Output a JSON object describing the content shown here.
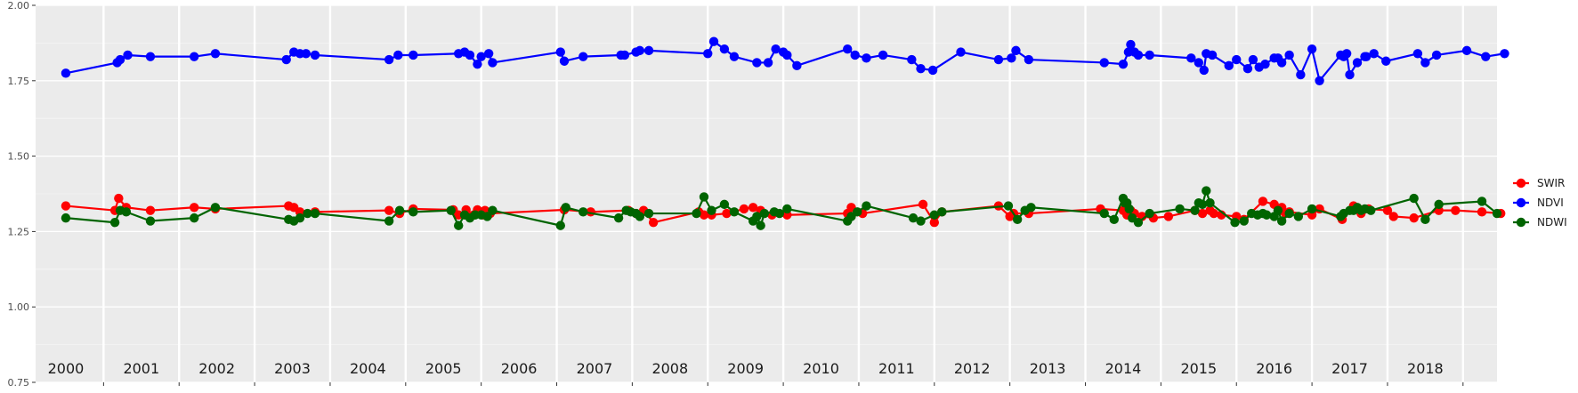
{
  "chart_data": {
    "type": "line",
    "title": "",
    "xlabel": "",
    "ylabel": "",
    "xlim": [
      1999.6,
      2018.95
    ],
    "ylim": [
      0.75,
      2.0
    ],
    "y_ticks": [
      0.75,
      1.0,
      1.25,
      1.5,
      1.75,
      2.0
    ],
    "y_tick_labels": [
      "0.75",
      "1.00",
      "1.25",
      "1.50",
      "1.75",
      "2.00"
    ],
    "x_year_labels": [
      "2000",
      "2001",
      "2002",
      "2003",
      "2004",
      "2005",
      "2006",
      "2007",
      "2008",
      "2009",
      "2010",
      "2011",
      "2012",
      "2013",
      "2014",
      "2015",
      "2016",
      "2017",
      "2018"
    ],
    "grid": true,
    "legend": "right",
    "series": [
      {
        "name": "SWIR",
        "color": "#ff0000",
        "x": [
          2000.0,
          2000.65,
          2000.7,
          2000.8,
          2001.12,
          2001.7,
          2001.98,
          2002.95,
          2003.02,
          2003.1,
          2003.3,
          2004.28,
          2004.42,
          2004.6,
          2005.13,
          2005.2,
          2005.3,
          2005.4,
          2005.45,
          2005.52,
          2005.55,
          2005.62,
          2006.6,
          2006.95,
          2007.45,
          2007.55,
          2007.65,
          2007.78,
          2008.38,
          2008.45,
          2008.55,
          2008.75,
          2008.98,
          2009.1,
          2009.2,
          2009.35,
          2009.55,
          2010.35,
          2010.4,
          2010.55,
          2011.35,
          2011.5,
          2011.6,
          2012.35,
          2012.5,
          2012.55,
          2012.75,
          2013.7,
          2014.0,
          2014.05,
          2014.1,
          2014.15,
          2014.25,
          2014.4,
          2014.6,
          2014.95,
          2015.05,
          2015.15,
          2015.2,
          2015.3,
          2015.5,
          2015.6,
          2015.85,
          2016.0,
          2016.08,
          2016.1,
          2016.15,
          2016.2,
          2016.5,
          2016.6,
          2016.9,
          2017.05,
          2017.12,
          2017.15,
          2017.25,
          2017.5,
          2017.58,
          2017.85,
          2018.18,
          2018.4,
          2018.75,
          2019.0
        ],
        "values": [
          1.335,
          1.32,
          1.36,
          1.33,
          1.32,
          1.33,
          1.325,
          1.335,
          1.33,
          1.315,
          1.315,
          1.32,
          1.31,
          1.325,
          1.322,
          1.305,
          1.322,
          1.305,
          1.322,
          1.305,
          1.32,
          1.31,
          1.322,
          1.315,
          1.32,
          1.31,
          1.32,
          1.28,
          1.315,
          1.305,
          1.305,
          1.31,
          1.325,
          1.33,
          1.32,
          1.305,
          1.305,
          1.31,
          1.33,
          1.31,
          1.34,
          1.28,
          1.315,
          1.335,
          1.3,
          1.31,
          1.31,
          1.325,
          1.32,
          1.305,
          1.32,
          1.31,
          1.3,
          1.295,
          1.3,
          1.32,
          1.31,
          1.32,
          1.31,
          1.305,
          1.3,
          1.29,
          1.35,
          1.34,
          1.32,
          1.33,
          1.31,
          1.315,
          1.305,
          1.325,
          1.29,
          1.335,
          1.325,
          1.31,
          1.325,
          1.32,
          1.3,
          1.295,
          1.32,
          1.32,
          1.315,
          1.31
        ]
      },
      {
        "name": "NDVI",
        "color": "#0000ff",
        "x": [
          2000.0,
          2000.68,
          2000.72,
          2000.82,
          2001.12,
          2001.7,
          2001.98,
          2002.92,
          2003.02,
          2003.1,
          2003.18,
          2003.3,
          2004.28,
          2004.4,
          2004.6,
          2005.2,
          2005.28,
          2005.35,
          2005.45,
          2005.5,
          2005.6,
          2005.65,
          2006.55,
          2006.6,
          2006.85,
          2007.35,
          2007.4,
          2007.55,
          2007.6,
          2007.72,
          2008.5,
          2008.58,
          2008.72,
          2008.85,
          2009.15,
          2009.3,
          2009.4,
          2009.5,
          2009.55,
          2009.68,
          2010.35,
          2010.45,
          2010.6,
          2010.82,
          2011.2,
          2011.32,
          2011.48,
          2011.85,
          2012.35,
          2012.52,
          2012.58,
          2012.75,
          2013.75,
          2014.0,
          2014.07,
          2014.1,
          2014.15,
          2014.2,
          2014.35,
          2014.9,
          2015.0,
          2015.07,
          2015.1,
          2015.18,
          2015.4,
          2015.5,
          2015.65,
          2015.72,
          2015.8,
          2015.88,
          2016.0,
          2016.05,
          2016.1,
          2016.2,
          2016.35,
          2016.5,
          2016.6,
          2016.88,
          2016.92,
          2016.96,
          2017.0,
          2017.1,
          2017.2,
          2017.22,
          2017.32,
          2017.48,
          2017.9,
          2018.0,
          2018.15,
          2018.55,
          2018.8,
          2019.05
        ],
        "values": [
          1.775,
          1.81,
          1.82,
          1.835,
          1.83,
          1.83,
          1.84,
          1.82,
          1.845,
          1.84,
          1.84,
          1.835,
          1.82,
          1.835,
          1.835,
          1.84,
          1.845,
          1.835,
          1.805,
          1.83,
          1.84,
          1.81,
          1.845,
          1.815,
          1.83,
          1.835,
          1.835,
          1.845,
          1.85,
          1.85,
          1.84,
          1.88,
          1.855,
          1.83,
          1.81,
          1.81,
          1.855,
          1.845,
          1.835,
          1.8,
          1.855,
          1.835,
          1.825,
          1.835,
          1.82,
          1.79,
          1.785,
          1.845,
          1.82,
          1.825,
          1.85,
          1.82,
          1.81,
          1.805,
          1.845,
          1.87,
          1.845,
          1.835,
          1.835,
          1.825,
          1.81,
          1.785,
          1.84,
          1.835,
          1.8,
          1.82,
          1.79,
          1.82,
          1.795,
          1.805,
          1.825,
          1.825,
          1.81,
          1.835,
          1.77,
          1.855,
          1.75,
          1.835,
          1.83,
          1.84,
          1.77,
          1.81,
          1.83,
          1.83,
          1.84,
          1.815,
          1.84,
          1.81,
          1.835,
          1.85,
          1.83,
          1.84
        ]
      },
      {
        "name": "NDWI",
        "color": "#006400",
        "x": [
          2000.0,
          2000.65,
          2000.72,
          2000.8,
          2001.12,
          2001.7,
          2001.98,
          2002.95,
          2003.02,
          2003.1,
          2003.2,
          2003.3,
          2004.28,
          2004.42,
          2004.6,
          2005.1,
          2005.2,
          2005.28,
          2005.35,
          2005.42,
          2005.5,
          2005.58,
          2005.65,
          2006.55,
          2006.62,
          2006.85,
          2007.32,
          2007.42,
          2007.48,
          2007.55,
          2007.6,
          2007.72,
          2008.35,
          2008.45,
          2008.55,
          2008.72,
          2008.85,
          2009.1,
          2009.15,
          2009.2,
          2009.25,
          2009.38,
          2009.45,
          2009.55,
          2010.35,
          2010.4,
          2010.48,
          2010.6,
          2011.22,
          2011.32,
          2011.5,
          2011.6,
          2012.48,
          2012.6,
          2012.7,
          2012.78,
          2013.75,
          2013.88,
          2014.0,
          2014.02,
          2014.05,
          2014.08,
          2014.12,
          2014.2,
          2014.35,
          2014.75,
          2014.95,
          2015.0,
          2015.05,
          2015.1,
          2015.15,
          2015.48,
          2015.6,
          2015.7,
          2015.78,
          2015.85,
          2015.9,
          2016.0,
          2016.05,
          2016.1,
          2016.2,
          2016.32,
          2016.5,
          2016.88,
          2016.92,
          2017.0,
          2017.05,
          2017.1,
          2017.15,
          2017.2,
          2017.28,
          2017.85,
          2018.0,
          2018.18,
          2018.75,
          2018.95
        ],
        "values": [
          1.295,
          1.28,
          1.32,
          1.315,
          1.285,
          1.295,
          1.33,
          1.29,
          1.285,
          1.295,
          1.31,
          1.31,
          1.285,
          1.32,
          1.315,
          1.32,
          1.27,
          1.305,
          1.295,
          1.305,
          1.305,
          1.3,
          1.32,
          1.27,
          1.33,
          1.315,
          1.295,
          1.32,
          1.315,
          1.31,
          1.3,
          1.31,
          1.31,
          1.365,
          1.32,
          1.34,
          1.315,
          1.285,
          1.3,
          1.27,
          1.31,
          1.315,
          1.31,
          1.325,
          1.285,
          1.3,
          1.315,
          1.335,
          1.295,
          1.285,
          1.305,
          1.315,
          1.335,
          1.29,
          1.32,
          1.33,
          1.31,
          1.29,
          1.36,
          1.345,
          1.345,
          1.325,
          1.295,
          1.28,
          1.31,
          1.325,
          1.32,
          1.345,
          1.34,
          1.385,
          1.345,
          1.28,
          1.285,
          1.31,
          1.305,
          1.31,
          1.305,
          1.3,
          1.32,
          1.285,
          1.31,
          1.3,
          1.325,
          1.3,
          1.31,
          1.32,
          1.32,
          1.33,
          1.32,
          1.325,
          1.32,
          1.36,
          1.29,
          1.34,
          1.35,
          1.31
        ]
      }
    ]
  }
}
